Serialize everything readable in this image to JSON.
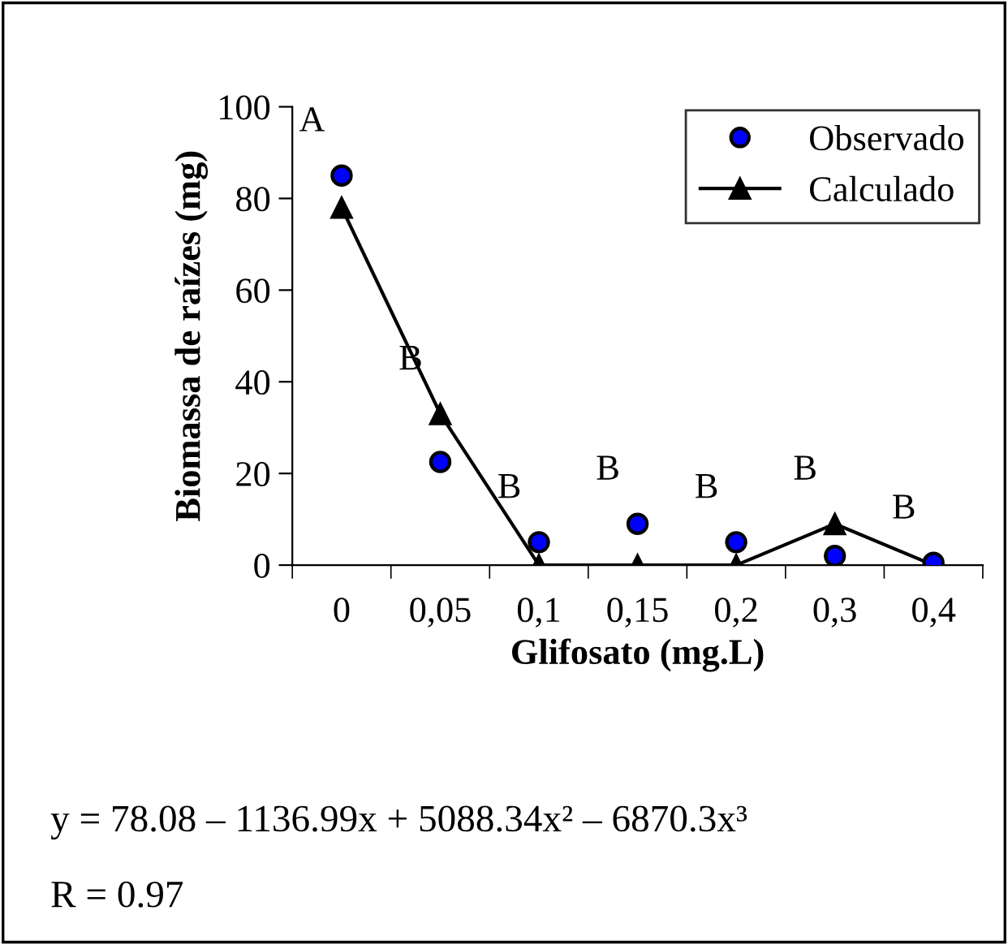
{
  "chart_data": {
    "type": "scatter",
    "xlabel": "Glifosato (mg.L)",
    "ylabel": "Biomassa de raízes (mg)",
    "categories": [
      "0",
      "0,05",
      "0,1",
      "0,15",
      "0,2",
      "0,3",
      "0,4"
    ],
    "series": [
      {
        "name": "Observado",
        "marker": "circle",
        "color": "#0000ff",
        "values": [
          85,
          22.5,
          5,
          9,
          5,
          2,
          0.5
        ]
      },
      {
        "name": "Calculado",
        "type": "line",
        "marker": "triangle",
        "line_style": "solid",
        "color": "#000000",
        "values": [
          78,
          33,
          0,
          0,
          0,
          9,
          0
        ]
      }
    ],
    "ylim": [
      0,
      100
    ],
    "yticks": [
      0,
      20,
      40,
      60,
      80,
      100
    ],
    "grid": false,
    "legend": "top right",
    "annotations": [
      "A",
      "B",
      "B",
      "B",
      "B",
      "B",
      "B",
      "y = 78.08 – 1136.99x + 5088.34x² – 6870.3x³",
      "R = 0.97"
    ]
  }
}
